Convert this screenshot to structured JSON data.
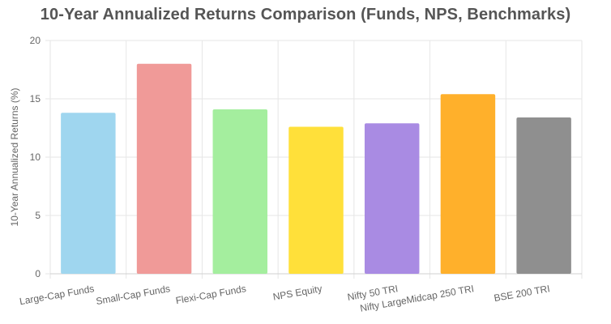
{
  "chart_data": {
    "type": "bar",
    "title": "10-Year Annualized Returns Comparison (Funds, NPS, Benchmarks)",
    "xlabel": "",
    "ylabel": "10-Year Annualized Returns (%)",
    "ylim": [
      0,
      20
    ],
    "yticks": [
      "0",
      "5",
      "10",
      "15",
      "20"
    ],
    "categories": [
      "Large-Cap Funds",
      "Small-Cap Funds",
      "Flexi-Cap Funds",
      "NPS Equity",
      "Nifty 50 TRI",
      "Nifty LargeMidcap 250 TRI",
      "BSE 200 TRI"
    ],
    "values": [
      13.8,
      18.0,
      14.1,
      12.6,
      12.9,
      15.4,
      13.4
    ],
    "colors": [
      "#9fd6ef",
      "#f09a98",
      "#a4ee9e",
      "#ffe03a",
      "#a98be3",
      "#ffb02b",
      "#8f8f8f"
    ],
    "grid": true,
    "legend": "none"
  }
}
